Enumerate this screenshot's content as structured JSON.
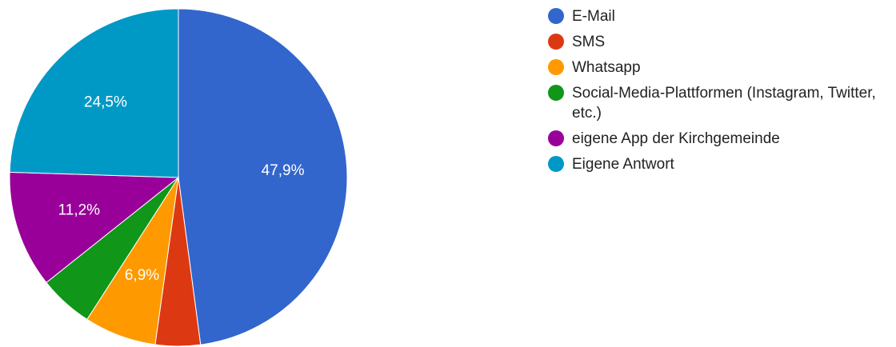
{
  "chart_data": {
    "type": "pie",
    "slices": [
      {
        "label": "E-Mail",
        "value": 47.9,
        "color": "#3366cc",
        "value_label": "47,9%"
      },
      {
        "label": "SMS",
        "value": 4.3,
        "color": "#dc3912",
        "value_label": ""
      },
      {
        "label": "Whatsapp",
        "value": 6.9,
        "color": "#ff9900",
        "value_label": "6,9%"
      },
      {
        "label": "Social-Media-Plattformen (Instagram, Twitter, etc.)",
        "value": 5.2,
        "color": "#109618",
        "value_label": ""
      },
      {
        "label": "eigene App der Kirchgemeinde",
        "value": 11.2,
        "color": "#990099",
        "value_label": "11,2%"
      },
      {
        "label": "Eigene Antwort",
        "value": 24.5,
        "color": "#0099c6",
        "value_label": "24,5%"
      }
    ],
    "start_angle_deg": 0,
    "direction": "clockwise",
    "legend_position": "right"
  },
  "legend": {
    "items": [
      {
        "label": "E-Mail",
        "color": "#3366cc"
      },
      {
        "label": "SMS",
        "color": "#dc3912"
      },
      {
        "label": "Whatsapp",
        "color": "#ff9900"
      },
      {
        "label": "Social-Media-Plattformen (Instagram, Twitter, etc.)",
        "color": "#109618"
      },
      {
        "label": "eigene App der Kirchgemeinde",
        "color": "#990099"
      },
      {
        "label": "Eigene Antwort",
        "color": "#0099c6"
      }
    ]
  }
}
